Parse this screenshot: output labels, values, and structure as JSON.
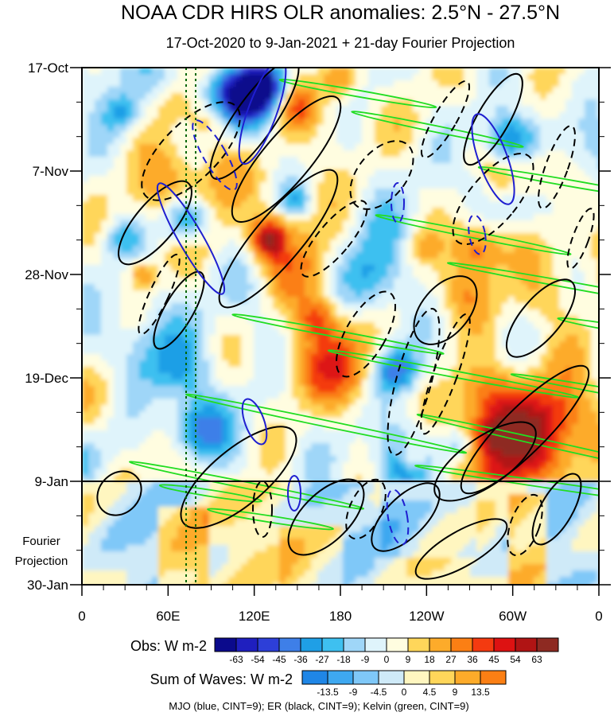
{
  "chart_data": {
    "type": "heatmap",
    "title": "NOAA CDR HIRS OLR anomalies: 2.5°N - 27.5°N",
    "subtitle": "17-Oct-2020 to 9-Jan-2021 + 21-day Fourier Projection",
    "x_ticks": [
      "0",
      "60E",
      "120E",
      "180",
      "120W",
      "60W",
      "0"
    ],
    "y_ticks": [
      "17-Oct",
      "7-Nov",
      "28-Nov",
      "19-Dec",
      "9-Jan",
      "30-Jan"
    ],
    "y_side_label": [
      "Fourier",
      "Projection"
    ],
    "obs_label": "Obs: W m-2",
    "obs_levels": [
      "-63",
      "-54",
      "-45",
      "-36",
      "-27",
      "-18",
      "-9",
      "0",
      "9",
      "18",
      "27",
      "36",
      "45",
      "54",
      "63"
    ],
    "obs_colors": [
      "#7f1fe6",
      "#0b0a8c",
      "#1f1fbf",
      "#2d3fd8",
      "#3e7fe8",
      "#1f9fe6",
      "#3ec0f0",
      "#9fd6f8",
      "#dff4fb",
      "#fffde0",
      "#ffd65a",
      "#fdab2a",
      "#fb7f14",
      "#f43a10",
      "#dd1212",
      "#b01414",
      "#8e2a22",
      "#ff66cc"
    ],
    "waves_label": "Sum of Waves: W m-2",
    "waves_levels": [
      "-13.5",
      "-9",
      "-4.5",
      "0",
      "4.5",
      "9",
      "13.5"
    ],
    "waves_colors": [
      "#1f86e6",
      "#3ea8f0",
      "#7fc8f8",
      "#cfeaf8",
      "#fff6c0",
      "#ffd65a",
      "#fdab2a",
      "#fb7f14"
    ],
    "footer": "MJO (blue, CINT=9); ER (black, CINT=9); Kelvin (green, CINT=9)",
    "colors": {
      "mjo": "#1f1fd0",
      "er": "#000000",
      "kelvin": "#22dd22",
      "marker": "#006600"
    }
  }
}
